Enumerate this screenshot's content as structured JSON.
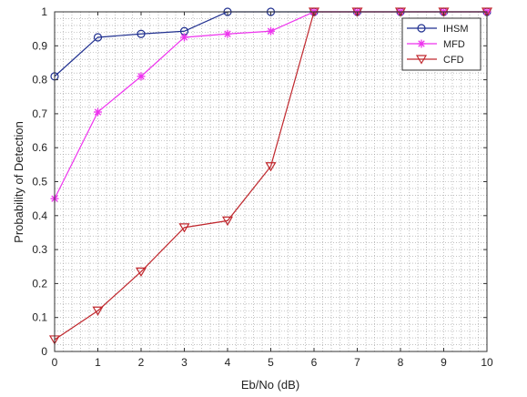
{
  "chart_data": {
    "type": "line",
    "title": "",
    "xlabel": "Eb/No (dB)",
    "ylabel": "Probability of Detection",
    "xlim": [
      0,
      10
    ],
    "ylim": [
      0,
      1
    ],
    "x_ticks": [
      "0",
      "1",
      "2",
      "3",
      "4",
      "5",
      "6",
      "7",
      "8",
      "9",
      "10"
    ],
    "y_ticks": [
      "0",
      "0.1",
      "0.2",
      "0.3",
      "0.4",
      "0.5",
      "0.6",
      "0.7",
      "0.8",
      "0.9",
      "1"
    ],
    "grid": true,
    "grid_style": "minor dotted",
    "legend_position": "top-right",
    "x": [
      0,
      1,
      2,
      3,
      4,
      5,
      6,
      7,
      8,
      9,
      10
    ],
    "series": [
      {
        "name": "IHSM",
        "color": "#1f2f8f",
        "marker": "circle",
        "values": [
          0.81,
          0.925,
          0.935,
          0.943,
          1.0,
          1.0,
          1.0,
          1.0,
          1.0,
          1.0,
          1.0
        ]
      },
      {
        "name": "MFD",
        "color": "#ee33ee",
        "marker": "star",
        "values": [
          0.45,
          0.705,
          0.81,
          0.925,
          0.935,
          0.943,
          1.0,
          1.0,
          1.0,
          1.0,
          1.0
        ]
      },
      {
        "name": "CFD",
        "color": "#c0272d",
        "marker": "triangle-down",
        "values": [
          0.035,
          0.12,
          0.235,
          0.365,
          0.385,
          0.545,
          1.0,
          1.0,
          1.0,
          1.0,
          1.0
        ]
      }
    ]
  }
}
